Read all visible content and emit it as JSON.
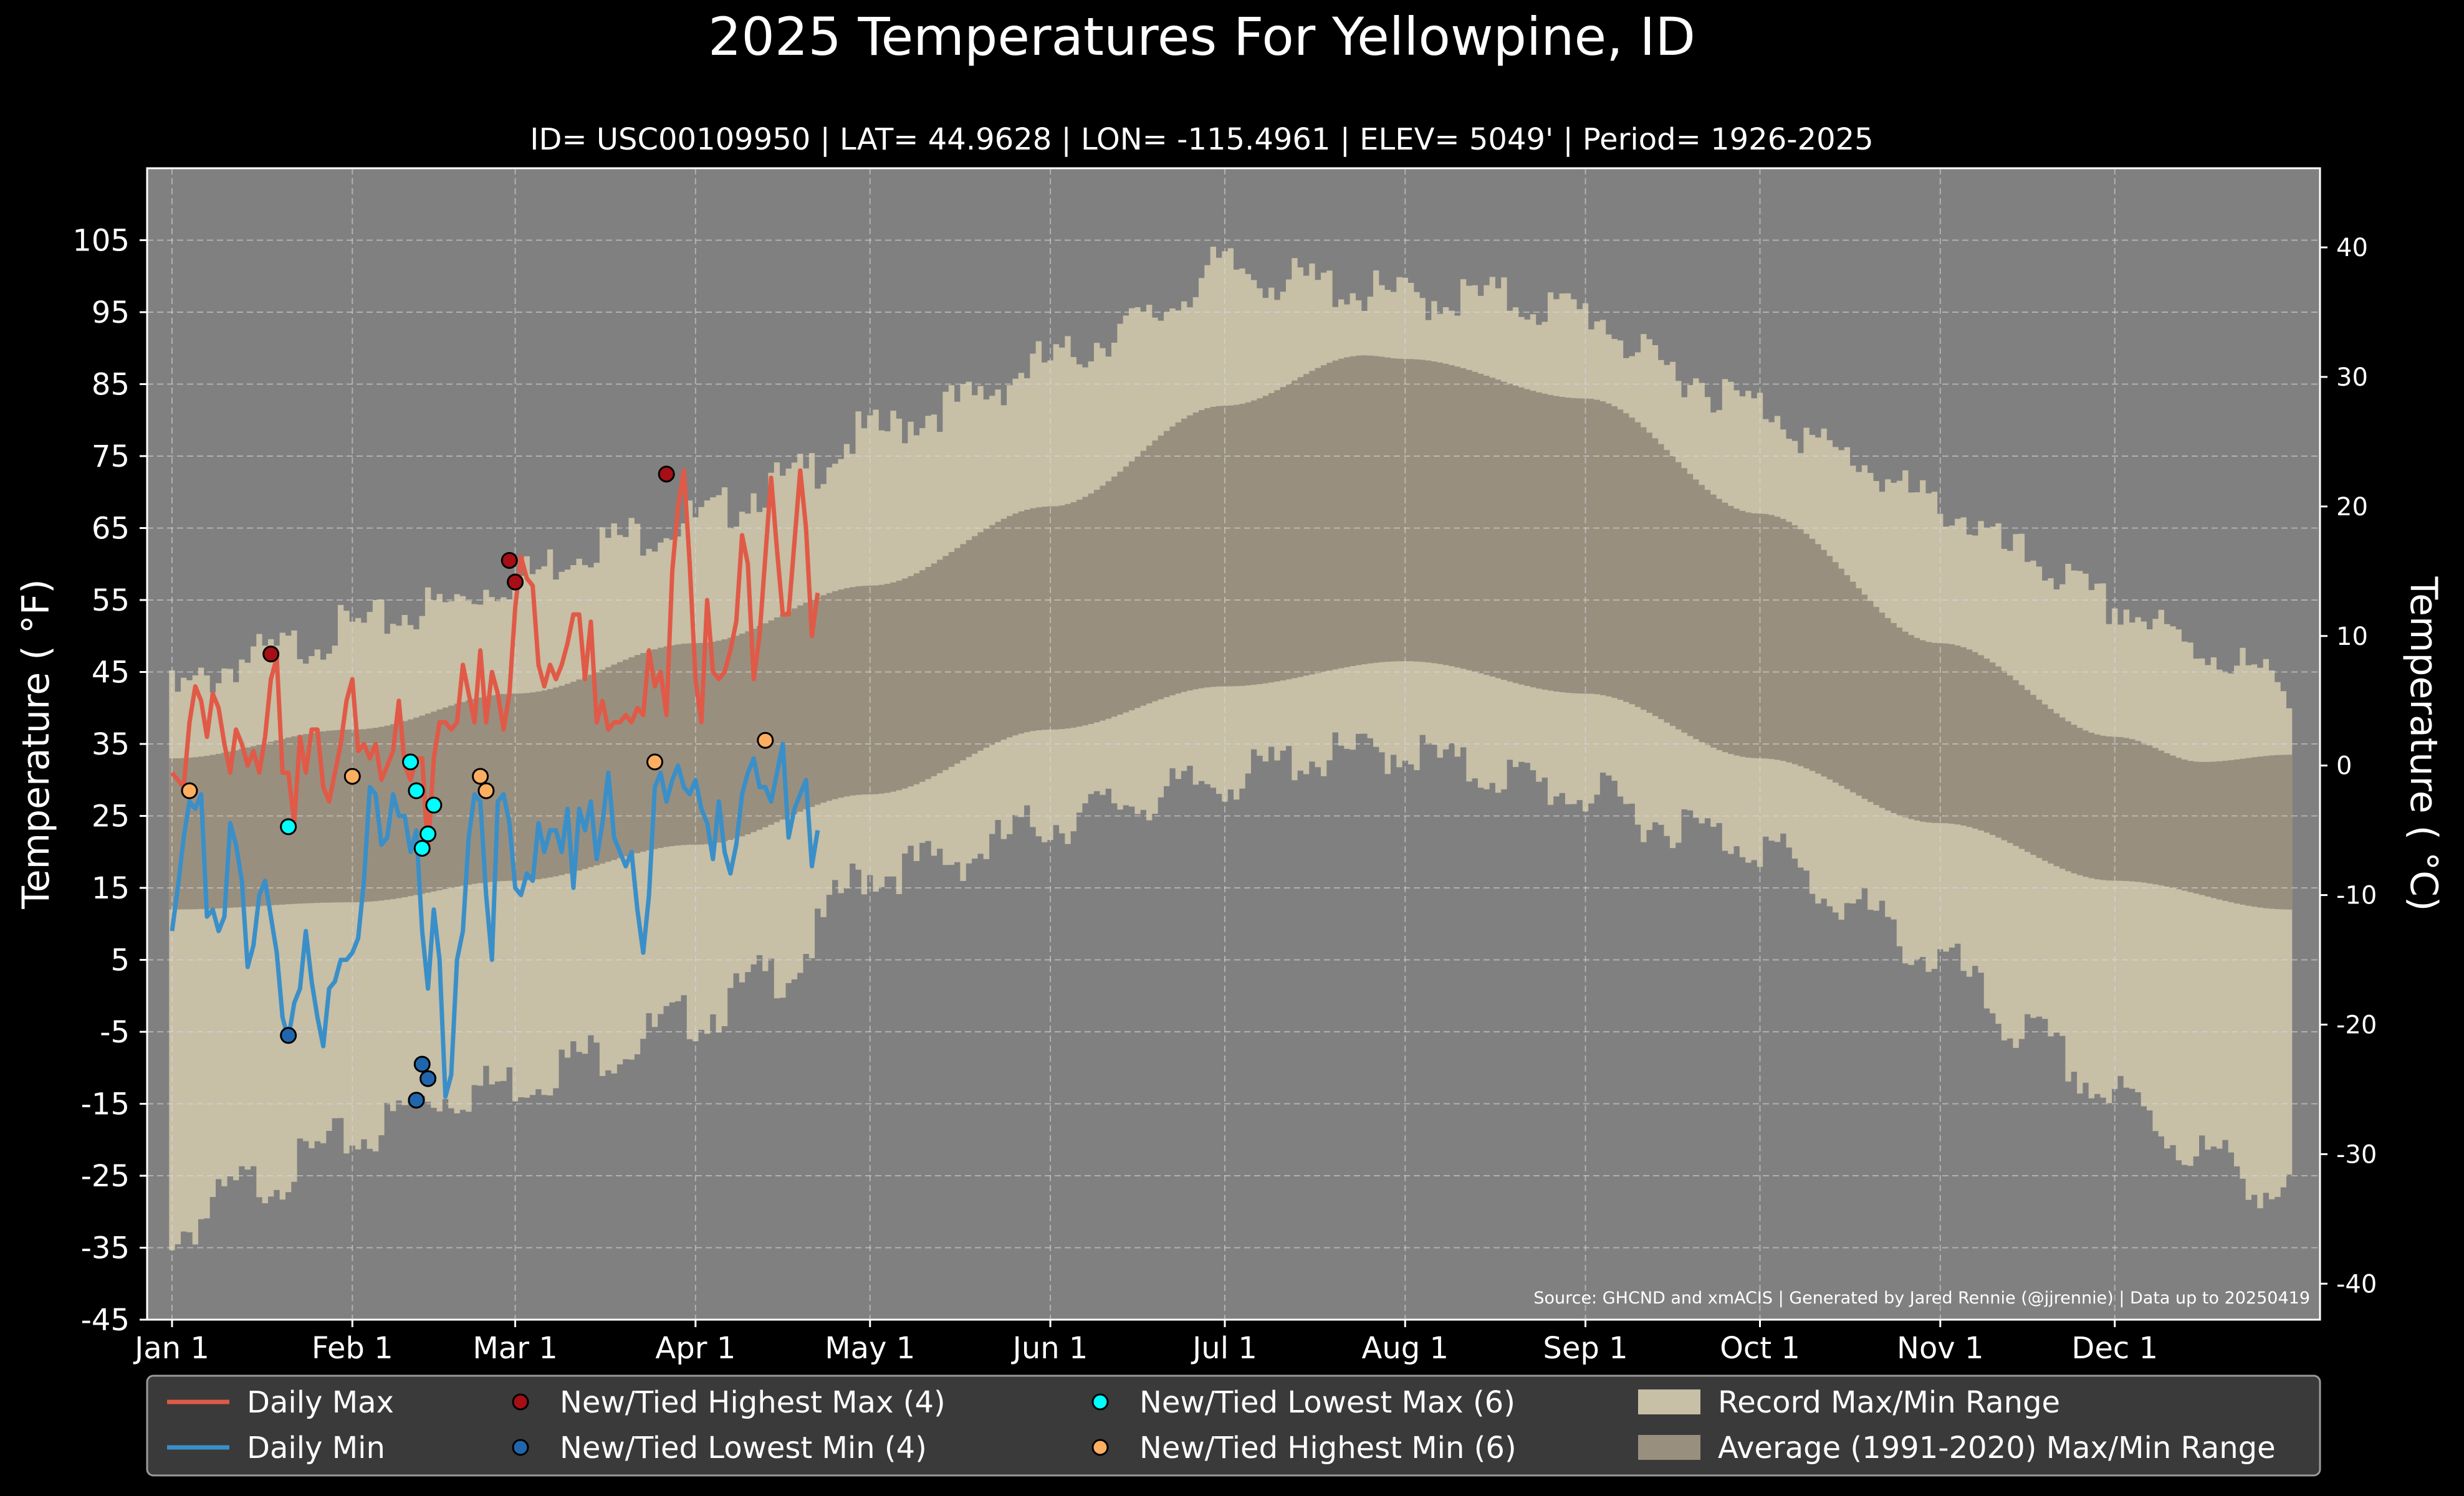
{
  "chart_data": {
    "type": "line",
    "title": "2025 Temperatures For Yellowpine, ID",
    "subtitle": "ID= USC00109950 | LAT= 44.9628 | LON= -115.4961 | ELEV= 5049' | Period= 1926-2025",
    "ylabel": "Temperature ($^\\circ$F)",
    "ylabel_display": "Temperature ( °F)",
    "y2label_display": "Temperature ( °C)",
    "ylim": [
      -45,
      115
    ],
    "y_ticks": [
      105,
      95,
      85,
      75,
      65,
      55,
      45,
      35,
      25,
      15,
      5,
      -5,
      -15,
      -25,
      -35,
      -45
    ],
    "y2_ticks": [
      40,
      30,
      20,
      10,
      0,
      -10,
      -20,
      -30,
      -40
    ],
    "x_ticks": [
      {
        "day": 1,
        "label": "Jan 1"
      },
      {
        "day": 32,
        "label": "Feb 1"
      },
      {
        "day": 60,
        "label": "Mar 1"
      },
      {
        "day": 91,
        "label": "Apr 1"
      },
      {
        "day": 121,
        "label": "May 1"
      },
      {
        "day": 152,
        "label": "Jun 1"
      },
      {
        "day": 182,
        "label": "Jul 1"
      },
      {
        "day": 213,
        "label": "Aug 1"
      },
      {
        "day": 244,
        "label": "Sep 1"
      },
      {
        "day": 274,
        "label": "Oct 1"
      },
      {
        "day": 305,
        "label": "Nov 1"
      },
      {
        "day": 335,
        "label": "Dec 1"
      }
    ],
    "grid": true,
    "legend_position": "bottom",
    "source_text": "Source: GHCND and xmACIS | Generated by Jared Rennie (@jjrennie) | Data up to 20250419",
    "colors": {
      "background": "#808080",
      "daily_max": "#e05a47",
      "daily_min": "#3a8fc8",
      "record_range": "#c7bfa6",
      "average_range": "#998f7f",
      "new_highest_max": "#a50f15",
      "new_lowest_min": "#2166ac",
      "new_lowest_max": "#00ffff",
      "new_highest_min": "#fdae61"
    },
    "legend": [
      {
        "key": "daily_max",
        "label": "Daily Max",
        "kind": "line"
      },
      {
        "key": "new_highest_max",
        "label": "New/Tied Highest Max (4)",
        "kind": "dot"
      },
      {
        "key": "new_lowest_max",
        "label": "New/Tied Lowest Max (6)",
        "kind": "dot"
      },
      {
        "key": "record_range",
        "label": "Record Max/Min Range",
        "kind": "patch"
      },
      {
        "key": "daily_min",
        "label": "Daily Min",
        "kind": "line"
      },
      {
        "key": "new_lowest_min",
        "label": "New/Tied Lowest Min (4)",
        "kind": "dot"
      },
      {
        "key": "new_highest_min",
        "label": "New/Tied Highest Min (6)",
        "kind": "dot"
      },
      {
        "key": "average_range",
        "label": "Average (1991-2020) Max/Min Range",
        "kind": "patch"
      }
    ],
    "record_max_anchors": [
      [
        1,
        42
      ],
      [
        15,
        47
      ],
      [
        32,
        51
      ],
      [
        46,
        54
      ],
      [
        60,
        58
      ],
      [
        74,
        63
      ],
      [
        91,
        66
      ],
      [
        105,
        71
      ],
      [
        121,
        78
      ],
      [
        135,
        82
      ],
      [
        152,
        88
      ],
      [
        166,
        93
      ],
      [
        182,
        101
      ],
      [
        196,
        99
      ],
      [
        213,
        97
      ],
      [
        227,
        97
      ],
      [
        244,
        95
      ],
      [
        258,
        87
      ],
      [
        274,
        82
      ],
      [
        288,
        75
      ],
      [
        305,
        68
      ],
      [
        319,
        61
      ],
      [
        335,
        54
      ],
      [
        350,
        48
      ],
      [
        365,
        43
      ]
    ],
    "record_min_anchors": [
      [
        1,
        -33
      ],
      [
        15,
        -26
      ],
      [
        32,
        -20
      ],
      [
        46,
        -14
      ],
      [
        60,
        -12
      ],
      [
        74,
        -8
      ],
      [
        91,
        -3
      ],
      [
        105,
        3
      ],
      [
        121,
        17
      ],
      [
        135,
        19
      ],
      [
        152,
        24
      ],
      [
        166,
        27
      ],
      [
        182,
        30
      ],
      [
        196,
        33
      ],
      [
        213,
        34
      ],
      [
        227,
        31
      ],
      [
        244,
        28
      ],
      [
        258,
        24
      ],
      [
        274,
        21
      ],
      [
        288,
        13
      ],
      [
        305,
        5
      ],
      [
        319,
        -5
      ],
      [
        335,
        -14
      ],
      [
        350,
        -22
      ],
      [
        365,
        -28
      ]
    ],
    "average_max_anchors": [
      [
        1,
        33
      ],
      [
        32,
        37
      ],
      [
        60,
        42
      ],
      [
        91,
        49
      ],
      [
        121,
        57
      ],
      [
        152,
        68
      ],
      [
        182,
        82
      ],
      [
        206,
        89
      ],
      [
        213,
        88.5
      ],
      [
        244,
        83
      ],
      [
        274,
        67
      ],
      [
        305,
        49
      ],
      [
        335,
        36
      ],
      [
        350,
        32.5
      ],
      [
        365,
        33.5
      ]
    ],
    "average_min_anchors": [
      [
        1,
        12
      ],
      [
        32,
        13
      ],
      [
        60,
        16
      ],
      [
        91,
        21
      ],
      [
        121,
        28
      ],
      [
        152,
        37
      ],
      [
        182,
        43
      ],
      [
        213,
        46.5
      ],
      [
        244,
        42
      ],
      [
        274,
        33
      ],
      [
        305,
        24
      ],
      [
        335,
        16
      ],
      [
        365,
        12
      ]
    ],
    "daily_max": [
      31,
      30,
      29,
      38,
      43,
      41,
      36,
      42,
      40,
      35,
      31,
      37,
      35,
      32,
      34,
      31,
      36,
      44,
      47,
      31,
      31,
      24,
      36,
      31,
      37,
      37,
      29,
      27,
      31,
      35,
      41,
      44,
      34,
      35,
      33,
      35,
      30,
      32,
      34,
      41,
      32,
      30,
      33,
      33,
      20,
      33,
      38,
      38,
      37,
      38,
      46,
      42,
      38,
      48,
      38,
      45,
      42,
      37,
      42,
      54,
      61,
      58,
      57,
      46,
      43,
      46,
      44,
      46,
      49,
      53,
      53,
      44,
      52,
      38,
      41,
      37,
      38,
      38,
      39,
      38,
      40,
      39,
      48,
      43,
      45,
      39,
      59,
      68,
      73,
      60,
      44,
      38,
      55,
      45,
      44,
      45,
      48,
      52,
      64,
      60,
      44,
      50,
      61,
      72,
      62,
      53,
      53,
      63,
      73,
      65,
      50,
      56
    ],
    "daily_min": [
      9,
      15,
      22,
      27,
      26,
      28,
      11,
      12,
      9,
      11,
      24,
      21,
      16,
      4,
      7,
      14,
      16,
      11,
      6,
      -3,
      -6,
      -1,
      1,
      9,
      2,
      -3,
      -7,
      1,
      2,
      5,
      5,
      6,
      8,
      16,
      29,
      28,
      21,
      22,
      28,
      25,
      25,
      20,
      23,
      9,
      1,
      12,
      5,
      -14,
      -11,
      5,
      9,
      22,
      28,
      27,
      14,
      5,
      27,
      28,
      24,
      15,
      14,
      17,
      16,
      24,
      20,
      23,
      23,
      20,
      26,
      15,
      26,
      23,
      27,
      19,
      24,
      31,
      22,
      20,
      18,
      20,
      12,
      6,
      14,
      29,
      31,
      27,
      30,
      32,
      29,
      28,
      30,
      26,
      24,
      19,
      27,
      20,
      17,
      21,
      28,
      31,
      33,
      29,
      29,
      27,
      31,
      35,
      22,
      26,
      28,
      30,
      18,
      23
    ],
    "record_points": [
      {
        "key": "new_highest_max",
        "points": [
          [
            18,
            47.5
          ],
          [
            59,
            60.5
          ],
          [
            60,
            57.5
          ],
          [
            86,
            72.5
          ]
        ]
      },
      {
        "key": "new_lowest_min",
        "points": [
          [
            21,
            -5.5
          ],
          [
            43,
            -14.5
          ],
          [
            44,
            -9.5
          ],
          [
            45,
            -11.5
          ]
        ]
      },
      {
        "key": "new_lowest_max",
        "points": [
          [
            21,
            23.5
          ],
          [
            42,
            32.5
          ],
          [
            43,
            28.5
          ],
          [
            44,
            20.5
          ],
          [
            45,
            22.5
          ],
          [
            46,
            26.5
          ]
        ]
      },
      {
        "key": "new_highest_min",
        "points": [
          [
            4,
            28.5
          ],
          [
            32,
            30.5
          ],
          [
            54,
            30.5
          ],
          [
            55,
            28.5
          ],
          [
            84,
            32.5
          ],
          [
            103,
            35.5
          ]
        ]
      }
    ]
  }
}
